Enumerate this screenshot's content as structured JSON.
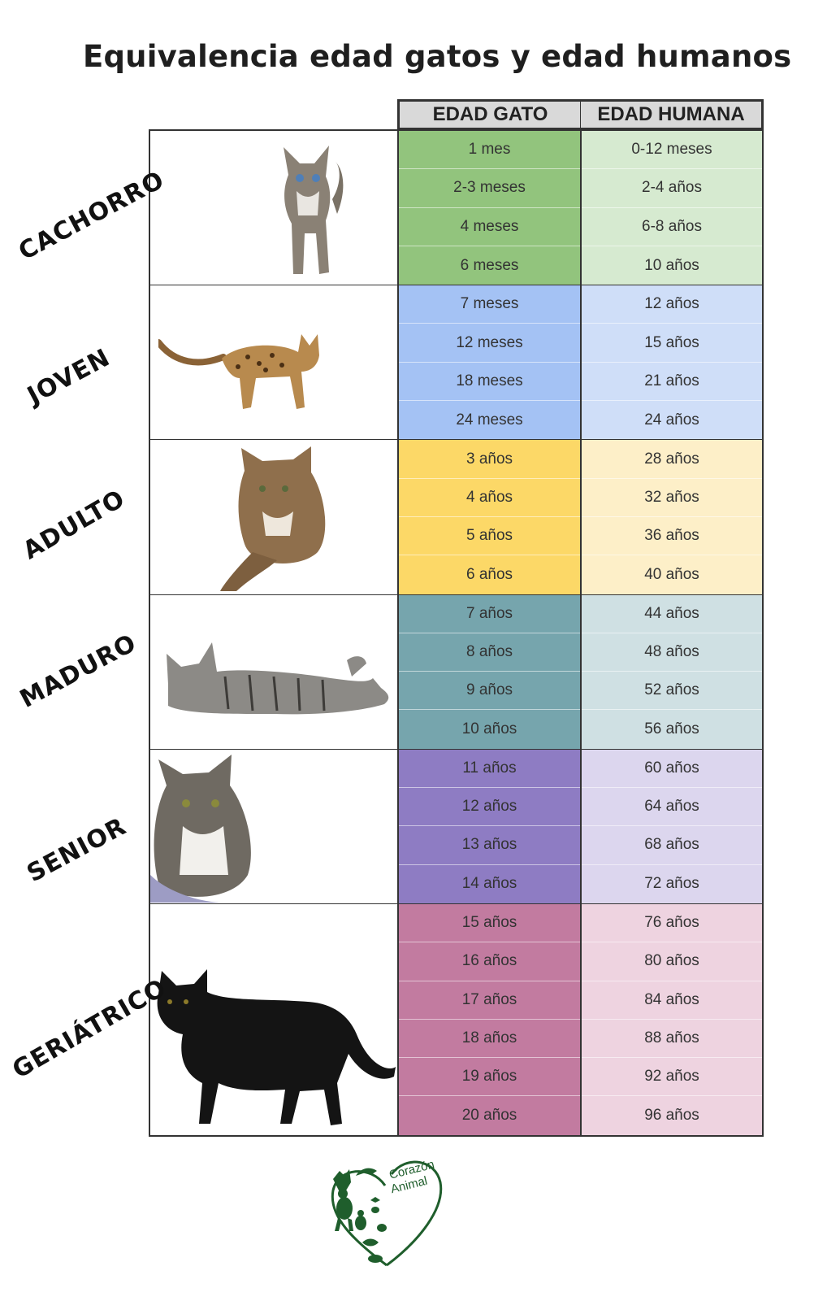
{
  "title": "Equivalencia edad gatos y edad humanos",
  "headers": {
    "cat_age": "EDAD GATO",
    "human_age": "EDAD HUMANA"
  },
  "stages": [
    {
      "label": "CACHORRO",
      "cat_color": "#92c47d",
      "human_color": "#d6ead0",
      "rows": [
        [
          "1 mes",
          "0-12 meses"
        ],
        [
          "2-3 meses",
          "2-4 años"
        ],
        [
          "4 meses",
          "6-8 años"
        ],
        [
          "6 meses",
          "10 años"
        ]
      ]
    },
    {
      "label": "JOVEN",
      "cat_color": "#a4c2f4",
      "human_color": "#cfdef8",
      "rows": [
        [
          "7 meses",
          "12 años"
        ],
        [
          "12 meses",
          "15 años"
        ],
        [
          "18 meses",
          "21 años"
        ],
        [
          "24 meses",
          "24 años"
        ]
      ]
    },
    {
      "label": "ADULTO",
      "cat_color": "#fcd867",
      "human_color": "#fdefc8",
      "rows": [
        [
          "3 años",
          "28 años"
        ],
        [
          "4 años",
          "32 años"
        ],
        [
          "5 años",
          "36 años"
        ],
        [
          "6 años",
          "40 años"
        ]
      ]
    },
    {
      "label": "MADURO",
      "cat_color": "#76a5ad",
      "human_color": "#cfe0e3",
      "rows": [
        [
          "7 años",
          "44 años"
        ],
        [
          "8 años",
          "48 años"
        ],
        [
          "9 años",
          "52 años"
        ],
        [
          "10 años",
          "56 años"
        ]
      ]
    },
    {
      "label": "SENIOR",
      "cat_color": "#8e7cc3",
      "human_color": "#dcd6ee",
      "rows": [
        [
          "11 años",
          "60 años"
        ],
        [
          "12 años",
          "64 años"
        ],
        [
          "13 años",
          "68 años"
        ],
        [
          "14 años",
          "72 años"
        ]
      ]
    },
    {
      "label": "GERIÁTRICO",
      "cat_color": "#c27ba0",
      "human_color": "#eed3e0",
      "rows": [
        [
          "15 años",
          "76 años"
        ],
        [
          "16 años",
          "80 años"
        ],
        [
          "17 años",
          "84 años"
        ],
        [
          "18 años",
          "88 años"
        ],
        [
          "19 años",
          "92 años"
        ],
        [
          "20 años",
          "96 años"
        ]
      ]
    }
  ],
  "logo": {
    "text": "Corazón Animal",
    "color": "#1f5e2c"
  }
}
